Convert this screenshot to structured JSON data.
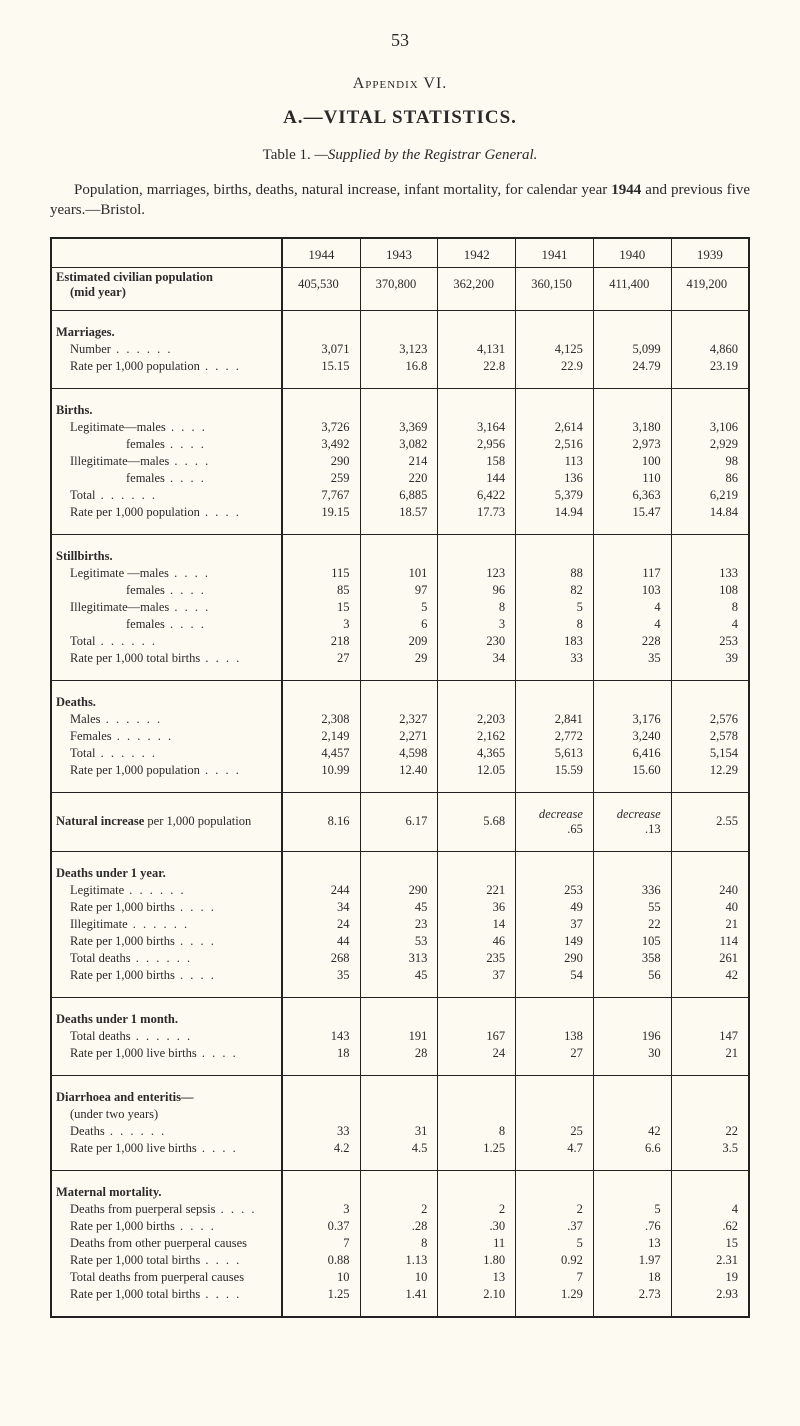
{
  "page_number": "53",
  "appendix_label": "Appendix VI.",
  "section_letter": "A.",
  "section_title": "—VITAL STATISTICS.",
  "table_caption_prefix": "Table 1.",
  "table_caption_rest": "—Supplied by the Registrar General.",
  "intro_html": "Population, marriages, births, deaths, natural increase, infant mortality, for calendar year <b>1944</b> and previous five years.—Bristol.",
  "years": [
    "1944",
    "1943",
    "1942",
    "1941",
    "1940",
    "1939"
  ],
  "midyear_label": "Estimated civilian population (mid year)",
  "midyear_values": [
    "405,530",
    "370,800",
    "362,200",
    "360,150",
    "411,400",
    "419,200"
  ],
  "groups": [
    {
      "rows": [
        {
          "label": "Marriages.",
          "head": true
        },
        {
          "label": "Number",
          "ind": 1,
          "dots": "long",
          "values": [
            "3,071",
            "3,123",
            "4,131",
            "4,125",
            "5,099",
            "4,860"
          ]
        },
        {
          "label": "Rate per 1,000 population",
          "ind": 1,
          "dots": "short",
          "values": [
            "15.15",
            "16.8",
            "22.8",
            "22.9",
            "24.79",
            "23.19"
          ]
        }
      ]
    },
    {
      "rows": [
        {
          "label": "Births.",
          "head": true
        },
        {
          "label": "Legitimate—males",
          "ind": 1,
          "dots": "short",
          "values": [
            "3,726",
            "3,369",
            "3,164",
            "2,614",
            "3,180",
            "3,106"
          ]
        },
        {
          "label": "females",
          "ind": 2,
          "dots": "short",
          "values": [
            "3,492",
            "3,082",
            "2,956",
            "2,516",
            "2,973",
            "2,929"
          ]
        },
        {
          "label": "Illegitimate—males",
          "ind": 1,
          "dots": "short",
          "values": [
            "290",
            "214",
            "158",
            "113",
            "100",
            "98"
          ]
        },
        {
          "label": "females",
          "ind": 2,
          "dots": "short",
          "values": [
            "259",
            "220",
            "144",
            "136",
            "110",
            "86"
          ]
        },
        {
          "label": "Total",
          "ind": 1,
          "dots": "long",
          "values": [
            "7,767",
            "6,885",
            "6,422",
            "5,379",
            "6,363",
            "6,219"
          ]
        },
        {
          "label": "Rate per 1,000 population",
          "ind": 1,
          "dots": "short",
          "values": [
            "19.15",
            "18.57",
            "17.73",
            "14.94",
            "15.47",
            "14.84"
          ]
        }
      ]
    },
    {
      "rows": [
        {
          "label": "Stillbirths.",
          "head": true
        },
        {
          "label": "Legitimate —males",
          "ind": 1,
          "dots": "short",
          "values": [
            "115",
            "101",
            "123",
            "88",
            "117",
            "133"
          ]
        },
        {
          "label": "females",
          "ind": 2,
          "dots": "short",
          "values": [
            "85",
            "97",
            "96",
            "82",
            "103",
            "108"
          ]
        },
        {
          "label": "Illegitimate—males",
          "ind": 1,
          "dots": "short",
          "values": [
            "15",
            "5",
            "8",
            "5",
            "4",
            "8"
          ]
        },
        {
          "label": "females",
          "ind": 2,
          "dots": "short",
          "values": [
            "3",
            "6",
            "3",
            "8",
            "4",
            "4"
          ]
        },
        {
          "label": "Total",
          "ind": 1,
          "dots": "long",
          "values": [
            "218",
            "209",
            "230",
            "183",
            "228",
            "253"
          ]
        },
        {
          "label": "Rate per 1,000 total births",
          "ind": 1,
          "dots": "short",
          "values": [
            "27",
            "29",
            "34",
            "33",
            "35",
            "39"
          ]
        }
      ]
    },
    {
      "rows": [
        {
          "label": "Deaths.",
          "head": true
        },
        {
          "label": "Males",
          "ind": 1,
          "dots": "long",
          "values": [
            "2,308",
            "2,327",
            "2,203",
            "2,841",
            "3,176",
            "2,576"
          ]
        },
        {
          "label": "Females",
          "ind": 1,
          "dots": "long",
          "values": [
            "2,149",
            "2,271",
            "2,162",
            "2,772",
            "3,240",
            "2,578"
          ]
        },
        {
          "label": "Total",
          "ind": 1,
          "dots": "long",
          "values": [
            "4,457",
            "4,598",
            "4,365",
            "5,613",
            "6,416",
            "5,154"
          ]
        },
        {
          "label": "Rate per 1,000 population",
          "ind": 1,
          "dots": "short",
          "values": [
            "10.99",
            "12.40",
            "12.05",
            "15.59",
            "15.60",
            "12.29"
          ]
        }
      ]
    },
    {
      "rows": [
        {
          "label": "<b>Natural increase</b> per 1,000 population",
          "raw": true,
          "ind": 0,
          "values": [
            "8.16",
            "6.17",
            "5.68",
            "<span class=\"em\">decrease</span><br>.65",
            "<span class=\"em\">decrease</span><br>.13",
            "2.55"
          ]
        }
      ]
    },
    {
      "rows": [
        {
          "label": "Deaths under 1 year.",
          "head": true
        },
        {
          "label": "Legitimate",
          "ind": 1,
          "dots": "long",
          "values": [
            "244",
            "290",
            "221",
            "253",
            "336",
            "240"
          ]
        },
        {
          "label": "Rate per 1,000 births",
          "ind": 1,
          "dots": "short",
          "values": [
            "34",
            "45",
            "36",
            "49",
            "55",
            "40"
          ]
        },
        {
          "label": "Illegitimate",
          "ind": 1,
          "dots": "long",
          "values": [
            "24",
            "23",
            "14",
            "37",
            "22",
            "21"
          ]
        },
        {
          "label": "Rate per 1,000 births",
          "ind": 1,
          "dots": "short",
          "values": [
            "44",
            "53",
            "46",
            "149",
            "105",
            "114"
          ]
        },
        {
          "label": "Total deaths",
          "ind": 1,
          "dots": "long",
          "values": [
            "268",
            "313",
            "235",
            "290",
            "358",
            "261"
          ]
        },
        {
          "label": "Rate per 1,000 births",
          "ind": 1,
          "dots": "short",
          "values": [
            "35",
            "45",
            "37",
            "54",
            "56",
            "42"
          ]
        }
      ]
    },
    {
      "rows": [
        {
          "label": "Deaths under 1 month.",
          "head": true
        },
        {
          "label": "Total deaths",
          "ind": 1,
          "dots": "long",
          "values": [
            "143",
            "191",
            "167",
            "138",
            "196",
            "147"
          ]
        },
        {
          "label": "Rate per 1,000 live births",
          "ind": 1,
          "dots": "short",
          "values": [
            "18",
            "28",
            "24",
            "27",
            "30",
            "21"
          ]
        }
      ]
    },
    {
      "rows": [
        {
          "label": "Diarrhoea and enteritis—",
          "head": true
        },
        {
          "label": "(under two years)",
          "ind": 1
        },
        {
          "label": "Deaths",
          "ind": 1,
          "dots": "long",
          "values": [
            "33",
            "31",
            "8",
            "25",
            "42",
            "22"
          ]
        },
        {
          "label": "Rate per 1,000 live births",
          "ind": 1,
          "dots": "short",
          "values": [
            "4.2",
            "4.5",
            "1.25",
            "4.7",
            "6.6",
            "3.5"
          ]
        }
      ]
    },
    {
      "rows": [
        {
          "label": "Maternal mortality.",
          "head": true
        },
        {
          "label": "Deaths from puerperal sepsis",
          "ind": 1,
          "dots": "short",
          "values": [
            "3",
            "2",
            "2",
            "2",
            "5",
            "4"
          ]
        },
        {
          "label": "Rate per 1,000 births",
          "ind": 1,
          "dots": "short",
          "values": [
            "0.37",
            ".28",
            ".30",
            ".37",
            ".76",
            ".62"
          ]
        },
        {
          "label": "Deaths from other puerperal causes",
          "ind": 1,
          "values": [
            "7",
            "8",
            "11",
            "5",
            "13",
            "15"
          ]
        },
        {
          "label": "Rate per 1,000 total births",
          "ind": 1,
          "dots": "short",
          "values": [
            "0.88",
            "1.13",
            "1.80",
            "0.92",
            "1.97",
            "2.31"
          ]
        },
        {
          "label": "Total deaths from puerperal causes",
          "ind": 1,
          "values": [
            "10",
            "10",
            "13",
            "7",
            "18",
            "19"
          ]
        },
        {
          "label": "Rate per 1,000 total births",
          "ind": 1,
          "dots": "short",
          "values": [
            "1.25",
            "1.41",
            "2.10",
            "1.29",
            "2.73",
            "2.93"
          ]
        }
      ]
    }
  ]
}
